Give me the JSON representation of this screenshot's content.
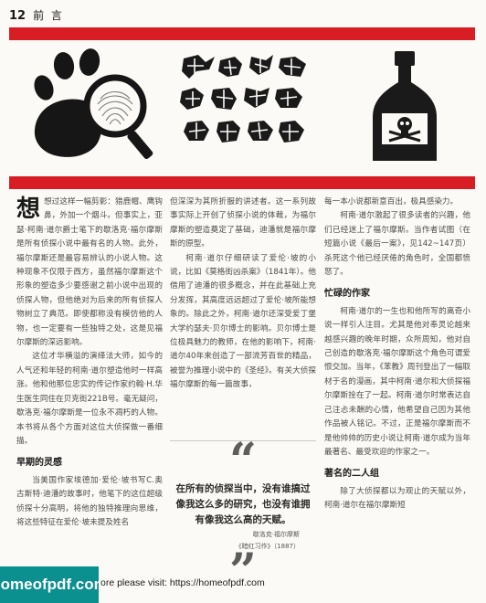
{
  "header": {
    "page_number": "12",
    "section": "前 言"
  },
  "illustrations": [
    {
      "name": "paw-print-magnifier",
      "icon": "magnifying-glass-paw-icon"
    },
    {
      "name": "dancing-men-cipher",
      "icon": "dancing-men-icon"
    },
    {
      "name": "poison-bottle",
      "icon": "skull-bottle-icon"
    }
  ],
  "colors": {
    "band": "#d81e24",
    "ink": "#1a1a1a",
    "watermark": "#0c8f8f"
  },
  "col1": {
    "dropcap": "想",
    "p1": "想过这样一幅剪影：猎鹿帽、鹰钩鼻，外加一个烟斗。但事实上，亚瑟·柯南·道尔爵士笔下的歇洛克·福尔摩斯是所有侦探小说中最有名的人物。此外，福尔摩斯还是最容易辨认的小说人物。这种现象不仅限于西方，虽然福尔摩斯这个形象的塑造多少要感谢之前小说中出现的侦探人物，但他绝对为后来的所有侦探人物树立了典范。即使都称没有模仿他的人物，也一定要有一些独特之处，这是见福尔摩斯的深远影响。",
    "p2": "这位才华横溢的演绎法大师，如今的人气还和年轻的柯南·道尔塑造他时一样高涨。他和他那位忠实的传记作家约翰·H.华生医生同住在贝克街221B号。毫无疑问，歇洛克·福尔摩斯是一位永不凋朽的人物。本书将从各个方面对这位大侦探做一番细描。",
    "subhead": "早期的灵感",
    "p3": "当美国作家埃德加·爱伦·坡书写C.奥古斯特·迪潘的故事时，他笔下的这位超级侦探十分高明，将他的独特推理向思维，将这些特征在爱伦·坡未提及姓名"
  },
  "col2": {
    "p1": "但深深为其所折服的讲述者。这一系列故事实际上开创了侦探小说的体裁，为福尔摩斯的塑造奠定了基础，迪潘就是福尔摩斯的原型。",
    "p2": "柯南·道尔仔细研读了爱伦·坡的小说，比如《莫格街凶杀案》（1841年）。他借用了迪潘的很多概念，并在此基础上充分发挥，其高度远远超过了爱伦·坡所能想象的。除此之外，柯南·道尔还深受爱丁堡大学约瑟夫·贝尔博士的影响。贝尔博士是位极具魅力的教师，在他的影响下，柯南·道尔40年来创造了一部流芳百世的精品，被誉为推理小说中的《圣经》。有关大侦探福尔摩斯的每一篇故事，"
  },
  "quote": {
    "open": "“",
    "text": "在所有的侦探当中，没有谁搞过像我这么多的研究，也没有谁拥有像我这么高的天赋。",
    "attribution": "歇洛克·福尔摩斯",
    "source": "《暗红习作》（1887）",
    "close": "”"
  },
  "col3": {
    "p1": "每一本小说都新意百出，极具感染力。",
    "p2": "柯南·道尔激起了很多读者的兴趣，他们已经迷上了福尔摩斯。当作者试图（在短篇小说《最后一案》，见142~147页）杀死这个他已经厌倦的角色时，全国都愤怒了。",
    "subhead1": "忙碌的作家",
    "p3": "柯南·道尔的一生也和他所写的离奇小说一样引人注目。尤其是他对奉灵论越来越感兴趣的晚年时期，众所周知，他对自己创造的歇洛克·福尔摩斯这个角色可谓爱恨交加。当年，《苯教》周刊登出了一幅取材于名的漫画，其中柯南·道尔和大侦探福尔摩斯拴在了一起。柯南·道尔时常表达自己注忐未酬的心情，他希望自己因为其他作品被人铭记。不过，正是福尔摩斯而不是他帅帅的历史小说让柯南·道尔成为当年最著名、最受欢迎的作家之一。",
    "subhead2": "著名的二人组",
    "p4": "除了大侦探都以为观止的天赋以外，柯南·道尔在福尔摩斯短"
  },
  "watermark": {
    "badge": "homeofpdf.com",
    "text": "ore please visit: https://homeofpdf.com"
  }
}
